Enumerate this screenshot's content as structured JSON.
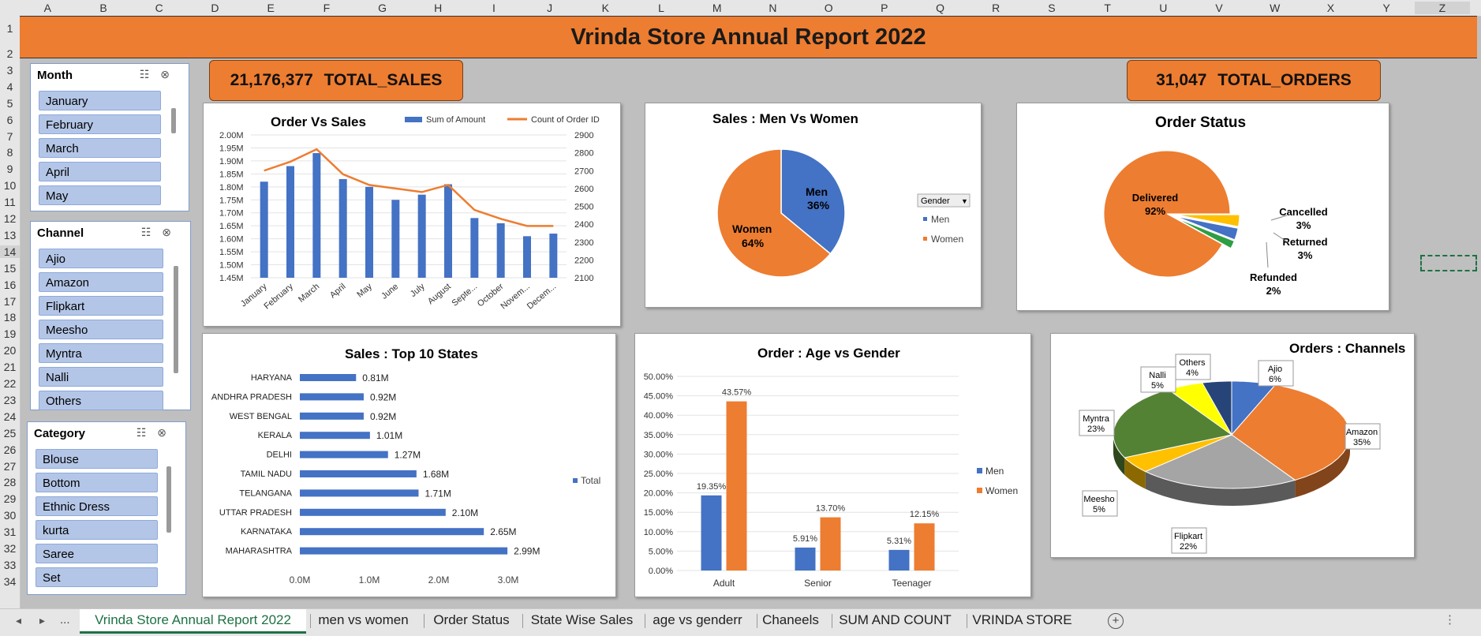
{
  "sheet": {
    "columns": [
      "A",
      "B",
      "C",
      "D",
      "E",
      "F",
      "G",
      "H",
      "I",
      "J",
      "K",
      "L",
      "M",
      "N",
      "O",
      "P",
      "Q",
      "R",
      "S",
      "T",
      "U",
      "V",
      "W",
      "X",
      "Y",
      "Z"
    ],
    "rows": [
      "1",
      "2",
      "3",
      "4",
      "5",
      "6",
      "7",
      "8",
      "9",
      "10",
      "11",
      "12",
      "13",
      "14",
      "15",
      "16",
      "17",
      "18",
      "19",
      "20",
      "21",
      "22",
      "23",
      "24",
      "25",
      "26",
      "27",
      "28",
      "29",
      "30",
      "31",
      "32",
      "33",
      "34"
    ],
    "selected_column": "Z",
    "selected_row": "14"
  },
  "banner": {
    "title": "Vrinda Store Annual Report 2022"
  },
  "kpis": {
    "total_sales": {
      "value": "21,176,377",
      "label": "TOTAL_SALES"
    },
    "total_orders": {
      "value": "31,047",
      "label": "TOTAL_ORDERS"
    }
  },
  "slicers": {
    "month": {
      "title": "Month",
      "items": [
        "January",
        "February",
        "March",
        "April",
        "May"
      ]
    },
    "channel": {
      "title": "Channel",
      "items": [
        "Ajio",
        "Amazon",
        "Flipkart",
        "Meesho",
        "Myntra",
        "Nalli",
        "Others"
      ]
    },
    "category": {
      "title": "Category",
      "items": [
        "Blouse",
        "Bottom",
        "Ethnic Dress",
        "kurta",
        "Saree",
        "Set"
      ]
    }
  },
  "charts": {
    "order_vs_sales": {
      "title": "Order Vs Sales",
      "legend": [
        "Sum of Amount",
        "Count of Order ID"
      ],
      "y_left_ticks": [
        "2.00M",
        "1.95M",
        "1.90M",
        "1.85M",
        "1.80M",
        "1.75M",
        "1.70M",
        "1.65M",
        "1.60M",
        "1.55M",
        "1.50M",
        "1.45M"
      ],
      "y_right_ticks": [
        "2900",
        "2800",
        "2700",
        "2600",
        "2500",
        "2400",
        "2300",
        "2200",
        "2100"
      ],
      "x_ticks": [
        "January",
        "February",
        "March",
        "April",
        "May",
        "June",
        "July",
        "August",
        "Septe...",
        "October",
        "Novem...",
        "Decem..."
      ]
    },
    "men_vs_women": {
      "title": "Sales : Men Vs Women",
      "slices": [
        {
          "name": "Men",
          "pct": "36%",
          "color": "#4472c4"
        },
        {
          "name": "Women",
          "pct": "64%",
          "color": "#ed7d31"
        }
      ],
      "legend_title": "Gender"
    },
    "order_status": {
      "title": "Order Status",
      "slices": [
        {
          "name": "Delivered",
          "pct": "92%",
          "color": "#ed7d31"
        },
        {
          "name": "Cancelled",
          "pct": "3%",
          "color": "#ffc000"
        },
        {
          "name": "Returned",
          "pct": "3%",
          "color": "#4472c4"
        },
        {
          "name": "Refunded",
          "pct": "2%",
          "color": "#2e9e44"
        }
      ]
    },
    "top_states": {
      "title": "Sales : Top 10 States",
      "legend": "Total",
      "x_ticks": [
        "0.0M",
        "1.0M",
        "2.0M",
        "3.0M"
      ]
    },
    "age_vs_gender": {
      "title": "Order : Age vs Gender",
      "y_ticks": [
        "50.00%",
        "45.00%",
        "40.00%",
        "35.00%",
        "30.00%",
        "25.00%",
        "20.00%",
        "15.00%",
        "10.00%",
        "5.00%",
        "0.00%"
      ],
      "legend": [
        "Men",
        "Women"
      ]
    },
    "channels": {
      "title": "Orders : Channels",
      "slices": [
        {
          "name": "Ajio",
          "pct": "6%",
          "color": "#4472c4"
        },
        {
          "name": "Amazon",
          "pct": "35%",
          "color": "#ed7d31"
        },
        {
          "name": "Flipkart",
          "pct": "22%",
          "color": "#a5a5a5"
        },
        {
          "name": "Meesho",
          "pct": "5%",
          "color": "#ffc000"
        },
        {
          "name": "Myntra",
          "pct": "23%",
          "color": "#548235"
        },
        {
          "name": "Nalli",
          "pct": "5%",
          "color": "#ffff00"
        },
        {
          "name": "Others",
          "pct": "4%",
          "color": "#264478"
        }
      ]
    }
  },
  "chart_data": [
    {
      "type": "bar",
      "title": "Order Vs Sales",
      "categories": [
        "January",
        "February",
        "March",
        "April",
        "May",
        "June",
        "July",
        "August",
        "Septe...",
        "October",
        "Novem...",
        "Decem..."
      ],
      "series": [
        {
          "name": "Sum of Amount",
          "type": "bar",
          "axis": "left",
          "values": [
            1.82,
            1.88,
            1.93,
            1.83,
            1.8,
            1.75,
            1.77,
            1.81,
            1.68,
            1.66,
            1.61,
            1.62
          ]
        },
        {
          "name": "Count of Order ID",
          "type": "line",
          "axis": "right",
          "values": [
            2700,
            2750,
            2820,
            2680,
            2620,
            2600,
            2580,
            2620,
            2480,
            2430,
            2390,
            2390
          ]
        }
      ],
      "ylim": [
        1.45,
        2.0
      ],
      "y2lim": [
        2100,
        2900
      ],
      "colors": {
        "bars": "#4472c4",
        "line": "#ed7d31"
      }
    },
    {
      "type": "pie",
      "title": "Sales : Men Vs Women",
      "categories": [
        "Men",
        "Women"
      ],
      "values": [
        36,
        64
      ]
    },
    {
      "type": "pie",
      "title": "Order Status",
      "categories": [
        "Delivered",
        "Cancelled",
        "Returned",
        "Refunded"
      ],
      "values": [
        92,
        3,
        3,
        2
      ]
    },
    {
      "type": "bar",
      "orientation": "horizontal",
      "title": "Sales : Top 10 States",
      "categories": [
        "HARYANA",
        "ANDHRA PRADESH",
        "WEST BENGAL",
        "KERALA",
        "DELHI",
        "TAMIL NADU",
        "TELANGANA",
        "UTTAR PRADESH",
        "KARNATAKA",
        "MAHARASHTRA"
      ],
      "values": [
        0.81,
        0.92,
        0.92,
        1.01,
        1.27,
        1.68,
        1.71,
        2.1,
        2.65,
        2.99
      ],
      "value_labels": [
        "0.81M",
        "0.92M",
        "0.92M",
        "1.01M",
        "1.27M",
        "1.68M",
        "1.71M",
        "2.10M",
        "2.65M",
        "2.99M"
      ],
      "xlim": [
        0,
        3.0
      ],
      "series_name": "Total",
      "color": "#4472c4"
    },
    {
      "type": "bar",
      "title": "Order : Age vs Gender",
      "categories": [
        "Adult",
        "Senior",
        "Teenager"
      ],
      "series": [
        {
          "name": "Men",
          "values": [
            19.35,
            5.91,
            5.31
          ],
          "labels": [
            "19.35%",
            "5.91%",
            "5.31%"
          ],
          "color": "#4472c4"
        },
        {
          "name": "Women",
          "values": [
            43.57,
            13.7,
            12.15
          ],
          "labels": [
            "43.57%",
            "13.70%",
            "12.15%"
          ],
          "color": "#ed7d31"
        }
      ],
      "ylim": [
        0,
        50
      ]
    },
    {
      "type": "pie",
      "title": "Orders : Channels",
      "categories": [
        "Ajio",
        "Amazon",
        "Flipkart",
        "Meesho",
        "Myntra",
        "Nalli",
        "Others"
      ],
      "values": [
        6,
        35,
        22,
        5,
        23,
        5,
        4
      ]
    }
  ],
  "tabs": {
    "items": [
      "Vrinda Store Annual Report 2022",
      "men vs women",
      "Order Status",
      "State Wise Sales",
      "age vs genderr",
      "Chaneels",
      "SUM AND COUNT",
      "VRINDA STORE"
    ],
    "active": "Vrinda Store Annual Report 2022",
    "ellipsis": "..."
  }
}
